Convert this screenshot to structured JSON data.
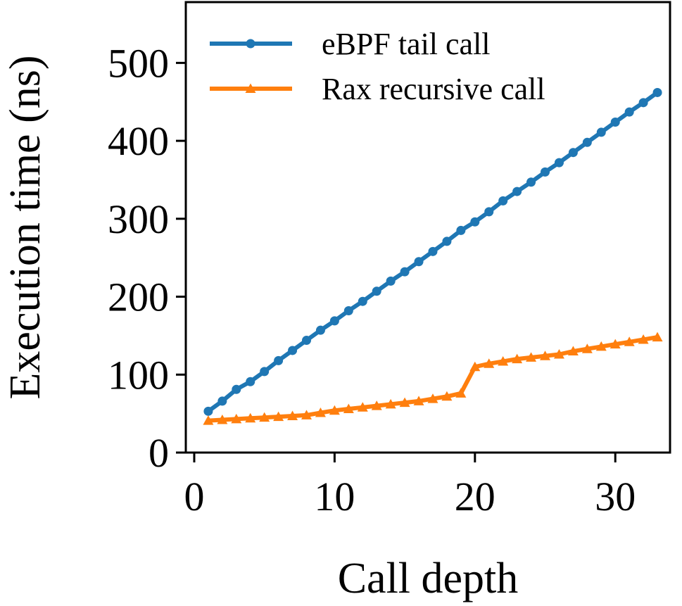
{
  "chart_data": {
    "type": "line",
    "xlabel": "Call depth",
    "ylabel": "Execution time (ns)",
    "xlim": [
      -0.6,
      33.9
    ],
    "ylim": [
      0,
      578
    ],
    "xticks": [
      0,
      10,
      20,
      30
    ],
    "yticks": [
      0,
      100,
      200,
      300,
      400,
      500
    ],
    "grid": false,
    "legend": "top-left",
    "series": [
      {
        "name": "eBPF tail call",
        "color": "#1f77b4",
        "marker": "circle",
        "x": [
          1,
          2,
          3,
          4,
          5,
          6,
          7,
          8,
          9,
          10,
          11,
          12,
          13,
          14,
          15,
          16,
          17,
          18,
          19,
          20,
          21,
          22,
          23,
          24,
          25,
          26,
          27,
          28,
          29,
          30,
          31,
          32,
          33
        ],
        "y": [
          53,
          66,
          81,
          91,
          104,
          118,
          131,
          144,
          157,
          169,
          182,
          194,
          207,
          220,
          232,
          245,
          258,
          271,
          285,
          296,
          309,
          323,
          335,
          347,
          360,
          372,
          385,
          398,
          411,
          424,
          437,
          449,
          462
        ]
      },
      {
        "name": "Rax recursive call",
        "color": "#ff7f0e",
        "marker": "triangle",
        "x": [
          1,
          2,
          3,
          4,
          5,
          6,
          7,
          8,
          9,
          10,
          11,
          12,
          13,
          14,
          15,
          16,
          17,
          18,
          19,
          20,
          21,
          22,
          23,
          24,
          25,
          26,
          27,
          28,
          29,
          30,
          31,
          32,
          33
        ],
        "y": [
          41,
          42,
          43,
          44,
          45,
          46,
          47,
          48,
          51,
          54,
          56,
          58,
          60,
          62,
          64,
          66,
          69,
          72,
          76,
          110,
          114,
          117,
          120,
          122,
          124,
          126,
          130,
          133,
          136,
          139,
          142,
          145,
          148
        ]
      }
    ]
  }
}
